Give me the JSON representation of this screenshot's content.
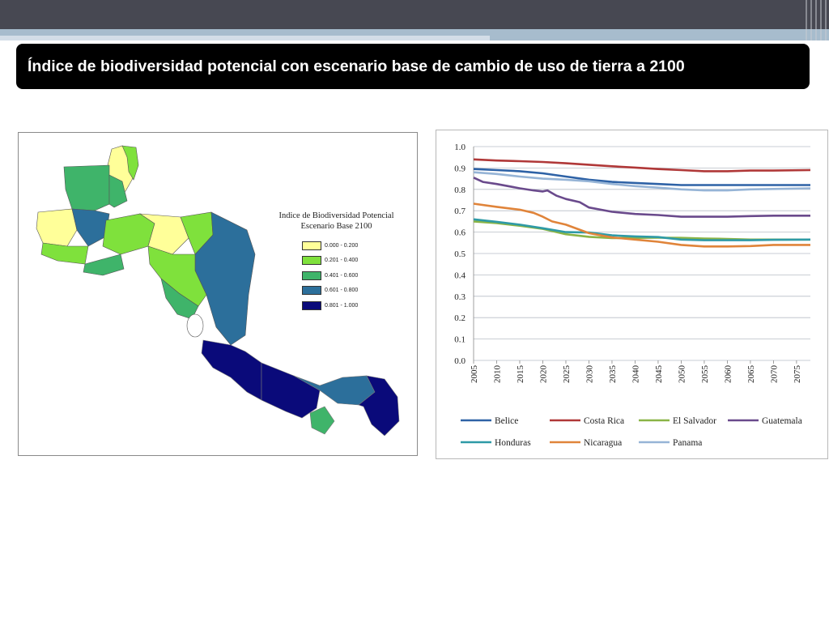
{
  "slide": {
    "title": "Índice de biodiversidad potencial con escenario base de cambio de uso de tierra a 2100"
  },
  "colors": {
    "top_bar": "#474852",
    "stripe": "#a7bccd",
    "title_band": "#000000"
  },
  "map": {
    "legend_title_line1": "Indice de Biodiversidad Potencial",
    "legend_title_line2": "Escenario Base 2100",
    "legend": [
      {
        "label": "0.000 - 0.200",
        "color": "#ffff99"
      },
      {
        "label": "0.201 - 0.400",
        "color": "#7fe13c"
      },
      {
        "label": "0.401 - 0.600",
        "color": "#3fb46a"
      },
      {
        "label": "0.601 - 0.800",
        "color": "#2c6f9b"
      },
      {
        "label": "0.801 - 1.000",
        "color": "#0a0a7a"
      }
    ]
  },
  "chart_data": {
    "type": "line",
    "title": "",
    "xlabel": "",
    "ylabel": "",
    "ylim": [
      0.0,
      1.0
    ],
    "yticks": [
      "1.0",
      "0.9",
      "0.8",
      "0.7",
      "0.6",
      "0.5",
      "0.4",
      "0.3",
      "0.2",
      "0.1",
      "0.0"
    ],
    "xlim": [
      2005,
      2078
    ],
    "xticks": [
      "2005",
      "2010",
      "2015",
      "2020",
      "2025",
      "2030",
      "2035",
      "2040",
      "2045",
      "2050",
      "2055",
      "2060",
      "2065",
      "2070",
      "2075"
    ],
    "grid": true,
    "legend_position": "bottom",
    "series": [
      {
        "name": "Belice",
        "color": "#2e62a6",
        "x": [
          2005,
          2010,
          2015,
          2020,
          2025,
          2030,
          2035,
          2040,
          2045,
          2050,
          2055,
          2060,
          2065,
          2070,
          2078
        ],
        "y": [
          0.895,
          0.89,
          0.885,
          0.875,
          0.86,
          0.845,
          0.835,
          0.83,
          0.825,
          0.82,
          0.82,
          0.82,
          0.82,
          0.82,
          0.82
        ]
      },
      {
        "name": "Costa Rica",
        "color": "#b03838",
        "x": [
          2005,
          2010,
          2015,
          2020,
          2025,
          2030,
          2035,
          2040,
          2045,
          2050,
          2055,
          2060,
          2065,
          2070,
          2078
        ],
        "y": [
          0.94,
          0.935,
          0.932,
          0.928,
          0.922,
          0.915,
          0.908,
          0.902,
          0.895,
          0.89,
          0.885,
          0.885,
          0.888,
          0.888,
          0.89
        ]
      },
      {
        "name": "El Salvador",
        "color": "#8ab446",
        "x": [
          2005,
          2010,
          2015,
          2020,
          2025,
          2030,
          2035,
          2040,
          2045,
          2050,
          2055,
          2060,
          2065,
          2070,
          2078
        ],
        "y": [
          0.65,
          0.642,
          0.63,
          0.615,
          0.59,
          0.578,
          0.572,
          0.573,
          0.574,
          0.573,
          0.57,
          0.568,
          0.565,
          0.565,
          0.565
        ]
      },
      {
        "name": "Guatemala",
        "color": "#6a4a8c",
        "x": [
          2005,
          2007,
          2010,
          2015,
          2018,
          2020,
          2021,
          2023,
          2025,
          2028,
          2030,
          2035,
          2040,
          2045,
          2050,
          2055,
          2060,
          2065,
          2070,
          2078
        ],
        "y": [
          0.855,
          0.835,
          0.825,
          0.805,
          0.795,
          0.79,
          0.795,
          0.77,
          0.755,
          0.74,
          0.715,
          0.695,
          0.685,
          0.68,
          0.672,
          0.672,
          0.672,
          0.675,
          0.677,
          0.677
        ]
      },
      {
        "name": "Honduras",
        "color": "#2e9aa6",
        "x": [
          2005,
          2010,
          2015,
          2020,
          2025,
          2030,
          2035,
          2040,
          2045,
          2050,
          2055,
          2060,
          2065,
          2070,
          2078
        ],
        "y": [
          0.66,
          0.648,
          0.635,
          0.618,
          0.6,
          0.598,
          0.585,
          0.58,
          0.577,
          0.565,
          0.562,
          0.562,
          0.562,
          0.564,
          0.565
        ]
      },
      {
        "name": "Nicaragua",
        "color": "#e0843a",
        "x": [
          2005,
          2010,
          2015,
          2018,
          2020,
          2022,
          2025,
          2030,
          2035,
          2040,
          2045,
          2050,
          2055,
          2060,
          2065,
          2070,
          2078
        ],
        "y": [
          0.733,
          0.718,
          0.705,
          0.69,
          0.672,
          0.65,
          0.635,
          0.595,
          0.575,
          0.565,
          0.555,
          0.54,
          0.533,
          0.533,
          0.535,
          0.54,
          0.54
        ]
      },
      {
        "name": "Panama",
        "color": "#96b4d6",
        "x": [
          2005,
          2010,
          2015,
          2020,
          2025,
          2030,
          2035,
          2040,
          2045,
          2050,
          2055,
          2060,
          2065,
          2070,
          2078
        ],
        "y": [
          0.88,
          0.872,
          0.86,
          0.85,
          0.845,
          0.838,
          0.825,
          0.815,
          0.808,
          0.8,
          0.795,
          0.795,
          0.8,
          0.802,
          0.805
        ]
      }
    ]
  }
}
